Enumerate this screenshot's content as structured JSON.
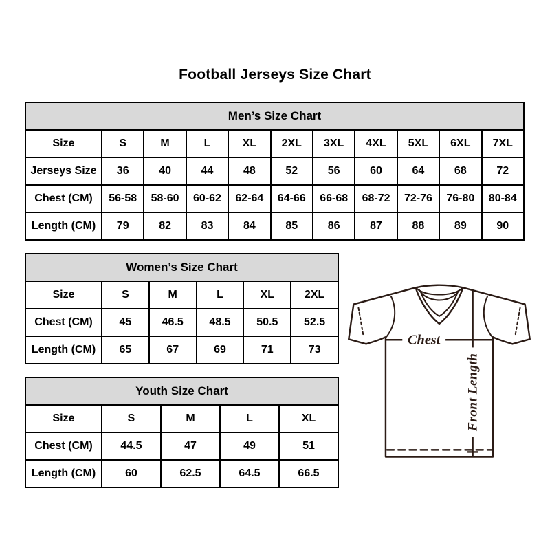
{
  "page": {
    "title": "Football Jerseys Size Chart"
  },
  "colors": {
    "table_header_bg": "#d9d9d9",
    "table_border": "#000000",
    "text": "#000000",
    "jersey_line": "#2b1b15"
  },
  "tables": {
    "mens": {
      "title": "Men’s Size Chart",
      "rows": [
        [
          "Size",
          "S",
          "M",
          "L",
          "XL",
          "2XL",
          "3XL",
          "4XL",
          "5XL",
          "6XL",
          "7XL"
        ],
        [
          "Jerseys Size",
          "36",
          "40",
          "44",
          "48",
          "52",
          "56",
          "60",
          "64",
          "68",
          "72"
        ],
        [
          "Chest (CM)",
          "56-58",
          "58-60",
          "60-62",
          "62-64",
          "64-66",
          "66-68",
          "68-72",
          "72-76",
          "76-80",
          "80-84"
        ],
        [
          "Length (CM)",
          "79",
          "82",
          "83",
          "84",
          "85",
          "86",
          "87",
          "88",
          "89",
          "90"
        ]
      ]
    },
    "womens": {
      "title": "Women’s Size Chart",
      "rows": [
        [
          "Size",
          "S",
          "M",
          "L",
          "XL",
          "2XL"
        ],
        [
          "Chest (CM)",
          "45",
          "46.5",
          "48.5",
          "50.5",
          "52.5"
        ],
        [
          "Length (CM)",
          "65",
          "67",
          "69",
          "71",
          "73"
        ]
      ]
    },
    "youth": {
      "title": "Youth Size Chart",
      "rows": [
        [
          "Size",
          "S",
          "M",
          "L",
          "XL"
        ],
        [
          "Chest (CM)",
          "44.5",
          "47",
          "49",
          "51"
        ],
        [
          "Length (CM)",
          "60",
          "62.5",
          "64.5",
          "66.5"
        ]
      ]
    }
  },
  "jersey_diagram": {
    "chest_label": "Chest",
    "front_length_label": "Front Length"
  }
}
